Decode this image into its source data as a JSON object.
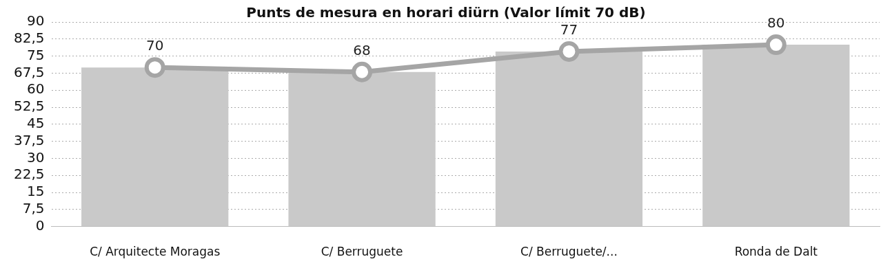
{
  "chart_data": {
    "type": "bar",
    "title": "Punts de mesura en horari diürn (Valor límit 70 dB)",
    "categories": [
      "C/ Arquitecte Moragas",
      "C/ Berruguete",
      "C/ Berruguete/...",
      "Ronda de Dalt"
    ],
    "series": [
      {
        "color": "#c9c9c9",
        "values": [
          70,
          68,
          77,
          80
        ]
      },
      {
        "type": "line",
        "color": "#a5a5a5",
        "values": [
          70,
          68,
          77,
          80
        ],
        "marker": "circle",
        "line_style": "solid",
        "value_labels": [
          "70",
          "68",
          "77",
          "80"
        ]
      }
    ],
    "ylim": [
      0,
      90
    ],
    "yticks": [
      0,
      {
        "value": 7.5,
        "label": "7,5"
      },
      15,
      {
        "value": 22.5,
        "label": "22,5"
      },
      30,
      {
        "value": 37.5,
        "label": "37,5"
      },
      45,
      {
        "value": 52.5,
        "label": "52,5"
      },
      60,
      {
        "value": 67.5,
        "label": "67,5"
      },
      75,
      {
        "value": 82.5,
        "label": "82,5"
      },
      90
    ],
    "grid": "y",
    "legend": false
  }
}
